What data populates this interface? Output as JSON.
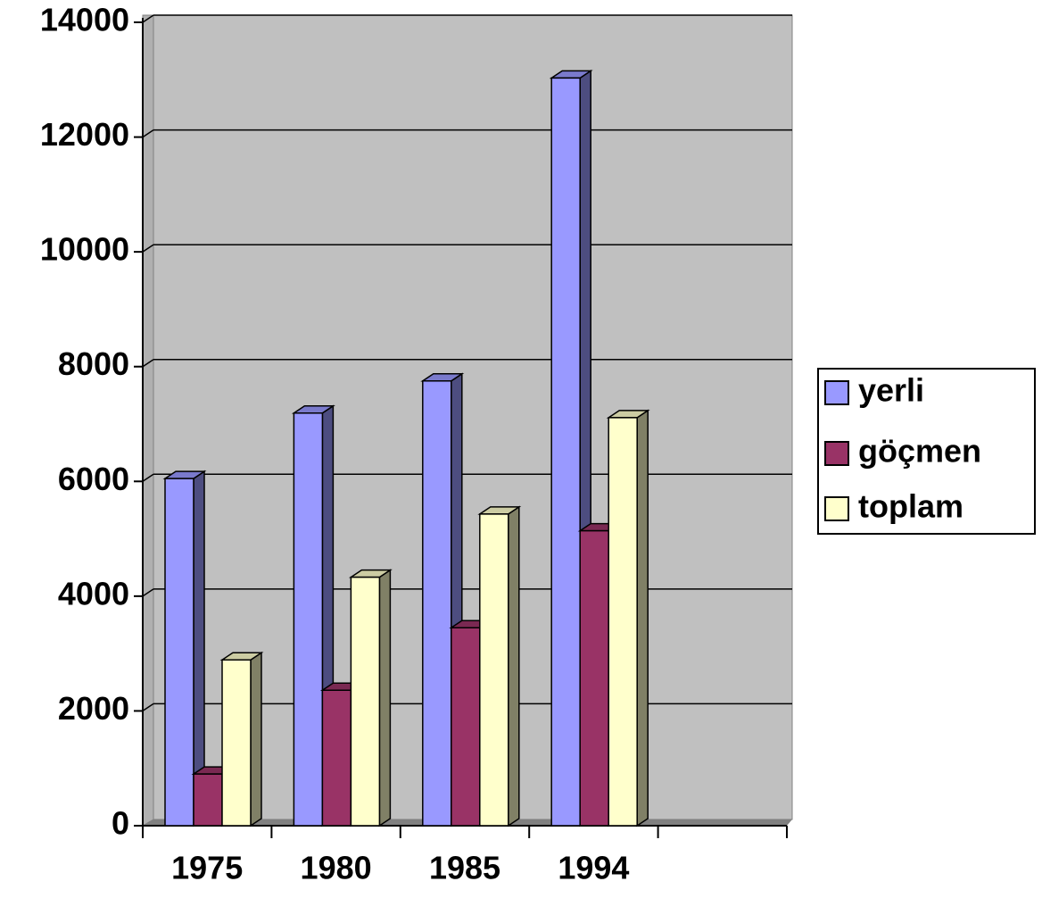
{
  "chart_data": {
    "type": "bar3d",
    "categories": [
      "1975",
      "1980",
      "1985",
      "1994",
      null
    ],
    "series": [
      {
        "name": "yerli",
        "color": "#9999ff",
        "values": [
          6050,
          7190,
          7750,
          13030,
          null
        ]
      },
      {
        "name": "göçmen",
        "color": "#993366",
        "values": [
          900,
          2360,
          3450,
          5140,
          null
        ]
      },
      {
        "name": "toplam",
        "color": "#ffffcc",
        "values": [
          2890,
          4330,
          5430,
          7110,
          null
        ]
      }
    ],
    "ylim": [
      0,
      14000
    ],
    "yticks": [
      0,
      2000,
      4000,
      6000,
      8000,
      10000,
      12000,
      14000
    ],
    "grid": true,
    "legend": "right"
  }
}
